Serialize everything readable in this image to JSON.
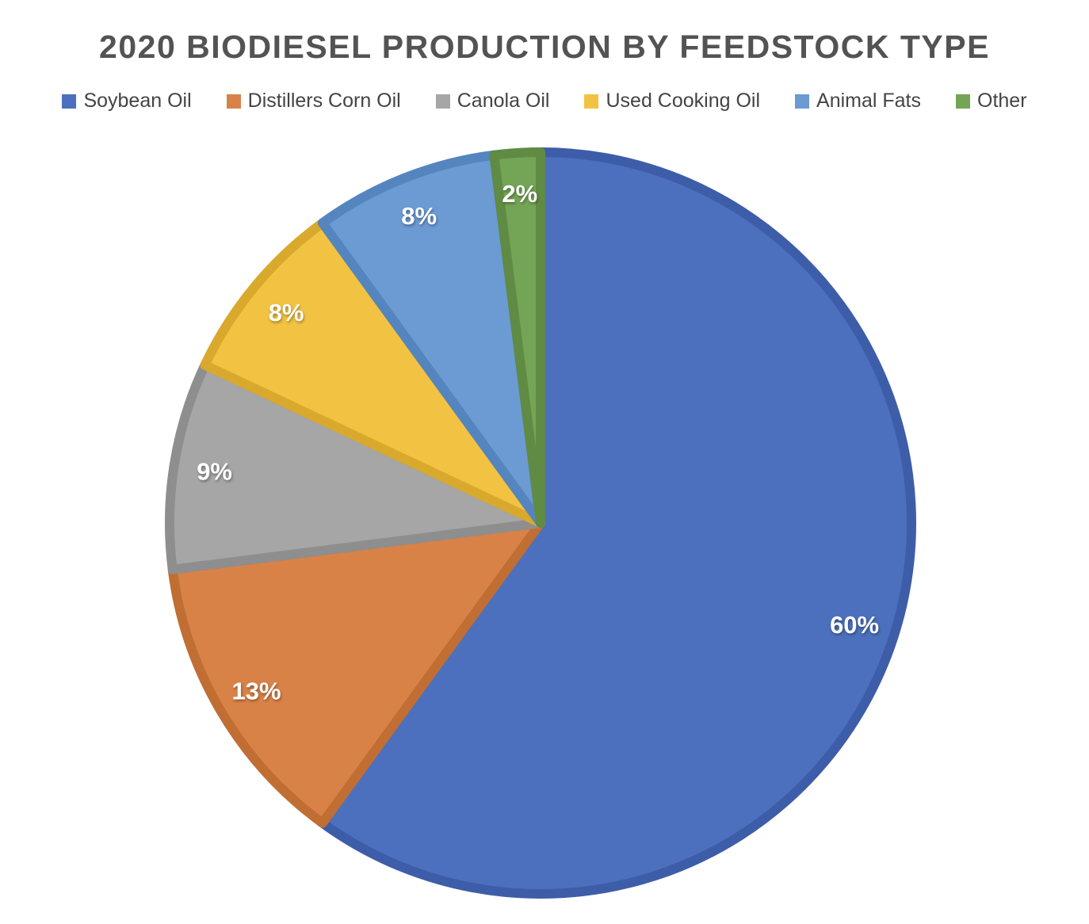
{
  "chart_data": {
    "type": "pie",
    "title": "2020 BIODIESEL PRODUCTION BY FEEDSTOCK TYPE",
    "legend_position": "top",
    "start_angle_deg": 0,
    "direction": "clockwise",
    "data_label_format": "percent",
    "categories": [
      "Soybean Oil",
      "Distillers Corn Oil",
      "Canola Oil",
      "Used Cooking Oil",
      "Animal Fats",
      "Other"
    ],
    "values": [
      60,
      13,
      9,
      8,
      8,
      2
    ],
    "slices": [
      {
        "label": "Soybean Oil",
        "value_pct": 60,
        "data_label": "60%",
        "color": "#4C70BD",
        "border_color": "#3E5DA9"
      },
      {
        "label": "Distillers Corn Oil",
        "value_pct": 13,
        "data_label": "13%",
        "color": "#D98247",
        "border_color": "#C06E34"
      },
      {
        "label": "Canola Oil",
        "value_pct": 9,
        "data_label": "9%",
        "color": "#A6A6A6",
        "border_color": "#8E8E8E"
      },
      {
        "label": "Used Cooking Oil",
        "value_pct": 8,
        "data_label": "8%",
        "color": "#F2C342",
        "border_color": "#D8A92C"
      },
      {
        "label": "Animal Fats",
        "value_pct": 8,
        "data_label": "8%",
        "color": "#6C9AD2",
        "border_color": "#5585BE"
      },
      {
        "label": "Other",
        "value_pct": 2,
        "data_label": "2%",
        "color": "#74A455",
        "border_color": "#5F8B44"
      }
    ],
    "text_colors": {
      "title": "#535353",
      "legend": "#444444",
      "data_labels": "#FFFFFF"
    }
  }
}
